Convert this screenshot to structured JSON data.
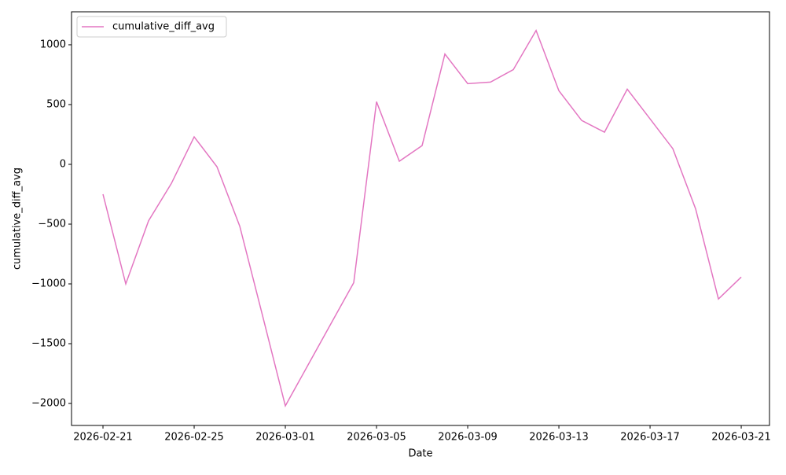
{
  "chart_data": {
    "type": "line",
    "x_label": "Date",
    "y_label": "cumulative_diff_avg",
    "x": [
      "2026-02-21",
      "2026-02-22",
      "2026-02-23",
      "2026-02-24",
      "2026-02-25",
      "2026-02-26",
      "2026-02-27",
      "2026-02-28",
      "2026-03-01",
      "2026-03-02",
      "2026-03-03",
      "2026-03-04",
      "2026-03-05",
      "2026-03-06",
      "2026-03-07",
      "2026-03-08",
      "2026-03-09",
      "2026-03-10",
      "2026-03-11",
      "2026-03-12",
      "2026-03-13",
      "2026-03-14",
      "2026-03-15",
      "2026-03-16",
      "2026-03-17",
      "2026-03-18",
      "2026-03-19",
      "2026-03-20",
      "2026-03-21"
    ],
    "series": [
      {
        "name": "cumulative_diff_avg",
        "color": "#e377c2",
        "values": [
          -250,
          -1000,
          -472,
          -160,
          230,
          -20,
          -517,
          -1265,
          -2020,
          -1677,
          -1333,
          -990,
          524,
          26,
          157,
          923,
          675,
          688,
          792,
          1120,
          616,
          367,
          269,
          629,
          380,
          131,
          -373,
          -1126,
          -943
        ]
      }
    ],
    "xlim": [
      "2026-02-19T14:53",
      "2026-03-22T05:45"
    ],
    "xticks": [
      "2026-02-21",
      "2026-02-25",
      "2026-03-01",
      "2026-03-05",
      "2026-03-09",
      "2026-03-13",
      "2026-03-17",
      "2026-03-21"
    ],
    "ylim": [
      -2184,
      1276
    ],
    "yticks": [
      {
        "value": -2000,
        "label": "−2000"
      },
      {
        "value": -1500,
        "label": "−1500"
      },
      {
        "value": -1000,
        "label": "−1000"
      },
      {
        "value": -500,
        "label": "−500"
      },
      0,
      500,
      1000
    ],
    "grid": false,
    "legend": "upper left"
  }
}
